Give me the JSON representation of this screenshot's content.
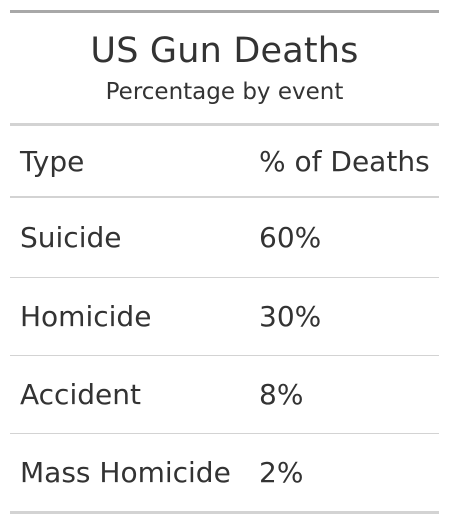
{
  "chart_data": {
    "type": "table",
    "title": "US Gun Deaths",
    "subtitle": "Percentage by event",
    "columns": [
      "Type",
      "% of Deaths"
    ],
    "rows": [
      {
        "type": "Suicide",
        "value": "60%"
      },
      {
        "type": "Homicide",
        "value": "30%"
      },
      {
        "type": "Accident",
        "value": "8%"
      },
      {
        "type": "Mass Homicide",
        "value": "2%"
      }
    ]
  }
}
